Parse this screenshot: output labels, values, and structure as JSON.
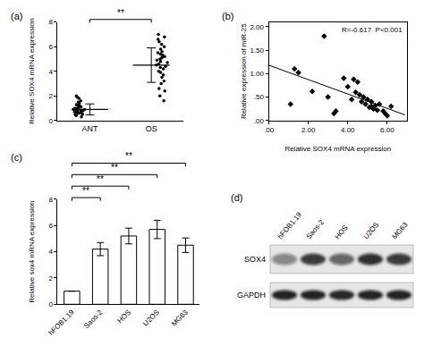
{
  "chart_data": [
    {
      "label": "(a)",
      "type": "dot_plot",
      "categories": [
        "ANT",
        "OS"
      ],
      "points": [
        [
          0.3,
          0.4,
          0.5,
          0.5,
          0.6,
          0.6,
          0.7,
          0.7,
          0.7,
          0.8,
          0.8,
          0.8,
          0.9,
          0.9,
          0.9,
          1.0,
          1.0,
          1.0,
          1.1,
          1.1,
          1.2,
          1.2,
          1.3,
          1.4,
          1.5,
          1.6,
          1.8,
          1.9,
          2.0,
          0.6
        ],
        [
          1.6,
          2.0,
          2.4,
          2.6,
          3.0,
          3.2,
          3.5,
          3.7,
          3.9,
          4.0,
          4.2,
          4.3,
          4.4,
          4.5,
          4.6,
          4.7,
          4.8,
          4.9,
          5.0,
          5.1,
          5.2,
          5.4,
          5.5,
          5.6,
          5.8,
          6.0,
          6.2,
          6.4,
          6.6,
          6.8,
          7.0,
          5.3
        ]
      ],
      "means": [
        0.9,
        4.5
      ],
      "errors": [
        0.45,
        1.4
      ],
      "ylabel": "Relative SOX4 mRNA expression",
      "ylim": [
        0,
        8
      ],
      "yticks": [
        0,
        2,
        4,
        6,
        8
      ],
      "significance": [
        {
          "from": "ANT",
          "to": "OS",
          "label": "**"
        }
      ],
      "color": "#000000",
      "marker": "circle",
      "grid": false
    },
    {
      "label": "(b)",
      "type": "scatter",
      "x": [
        1.1,
        1.3,
        1.5,
        2.2,
        2.8,
        3.0,
        3.3,
        3.4,
        3.8,
        4.0,
        4.2,
        4.3,
        4.4,
        4.5,
        4.6,
        4.7,
        4.8,
        4.9,
        5.0,
        5.1,
        5.2,
        5.3,
        5.4,
        5.5,
        5.6,
        5.8,
        5.9,
        6.0,
        6.2,
        5.2
      ],
      "y": [
        0.35,
        1.1,
        1.02,
        0.62,
        1.8,
        0.5,
        0.15,
        0.2,
        0.9,
        0.72,
        0.45,
        0.88,
        0.6,
        0.82,
        0.55,
        0.4,
        0.5,
        0.35,
        0.45,
        0.28,
        0.3,
        0.25,
        0.32,
        0.22,
        0.35,
        0.2,
        0.15,
        0.1,
        0.3,
        0.4
      ],
      "fit_line": {
        "x": [
          0,
          6.9
        ],
        "y": [
          1.18,
          0.12
        ]
      },
      "xlabel": "Relative SOX4 mRNA expression",
      "ylabel": "Relative expression of miR-25",
      "xlim": [
        0,
        7
      ],
      "xticks": [
        {
          "value": 0,
          "label": ".00"
        },
        {
          "value": 2,
          "label": "2.00"
        },
        {
          "value": 4,
          "label": "4.00"
        },
        {
          "value": 6,
          "label": "6.00"
        }
      ],
      "ylim": [
        0,
        2.1
      ],
      "yticks": [
        {
          "value": 0,
          "label": ".00"
        },
        {
          "value": 0.5,
          "label": ".50"
        },
        {
          "value": 1,
          "label": "1.00"
        },
        {
          "value": 1.5,
          "label": "1.50"
        },
        {
          "value": 2,
          "label": "2.00"
        }
      ],
      "annotation": "R=-0.617  P<0.001",
      "color": "#000000",
      "marker": "diamond",
      "grid": false
    },
    {
      "label": "(c)",
      "type": "bar",
      "categories": [
        "hFOB1.19",
        "Saos-2",
        "HOS",
        "U2OS",
        "MG63"
      ],
      "values": [
        1,
        4.2,
        5.2,
        5.7,
        4.5
      ],
      "errors": [
        0,
        0.5,
        0.6,
        0.7,
        0.55
      ],
      "ylabel": "Relative sox4 mRNA expression",
      "ylim": [
        0,
        8
      ],
      "yticks": [
        0,
        2,
        4,
        6,
        8
      ],
      "significance": [
        {
          "from": "hFOB1.19",
          "to": "Saos-2",
          "label": "**"
        },
        {
          "from": "hFOB1.19",
          "to": "HOS",
          "label": "**"
        },
        {
          "from": "hFOB1.19",
          "to": "U2OS",
          "label": "**"
        },
        {
          "from": "hFOB1.19",
          "to": "MG63",
          "label": "**"
        }
      ],
      "color": "#ffffff",
      "grid": false
    }
  ],
  "blot": {
    "label": "(d)",
    "lanes": [
      "hFOB1.19",
      "Saos-2",
      "HOS",
      "U2OS",
      "MG63"
    ],
    "rows": [
      {
        "name": "SOX4",
        "intensity": [
          0.45,
          0.8,
          0.6,
          0.85,
          0.8
        ]
      },
      {
        "name": "GAPDH",
        "intensity": [
          0.9,
          0.9,
          0.88,
          0.9,
          0.9
        ]
      }
    ]
  }
}
